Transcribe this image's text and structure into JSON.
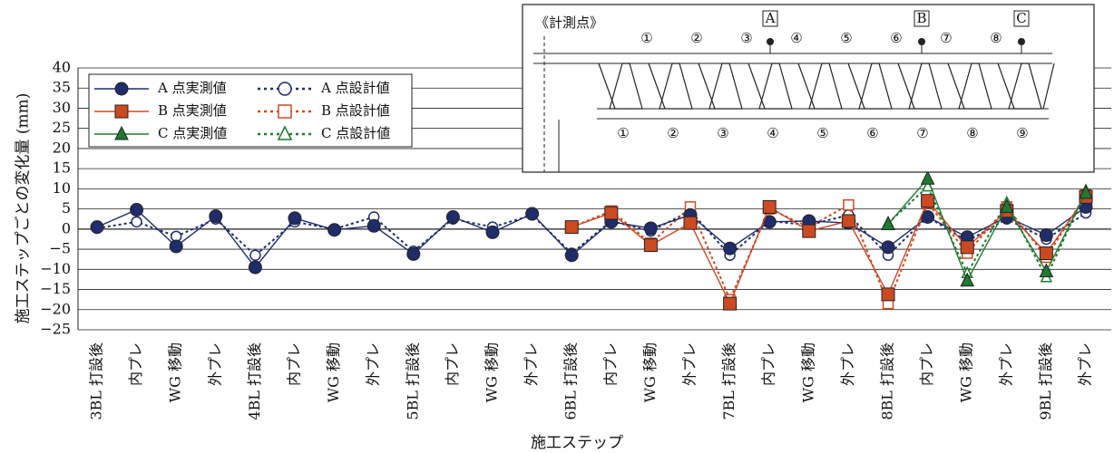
{
  "chart_data": {
    "type": "line",
    "title": "",
    "xlabel": "施工ステップ",
    "ylabel": "施工ステップごとの変化量 (mm)",
    "ylim": [
      -25,
      40
    ],
    "yticks": [
      40,
      35,
      30,
      25,
      20,
      15,
      10,
      5,
      0,
      -5,
      -10,
      -15,
      -20,
      -25
    ],
    "grid": true,
    "legend_position": "top-left",
    "categories": [
      "3BL 打設後",
      "内プレ",
      "WG 移動",
      "外プレ",
      "4BL 打設後",
      "内プレ",
      "WG 移動",
      "外プレ",
      "5BL 打設後",
      "内プレ",
      "WG 移動",
      "外プレ",
      "6BL 打設後",
      "内プレ",
      "WG 移動",
      "外プレ",
      "7BL 打設後",
      "内プレ",
      "WG 移動",
      "外プレ",
      "8BL 打設後",
      "内プレ",
      "WG 移動",
      "外プレ",
      "9BL 打設後",
      "外プレ"
    ],
    "series": [
      {
        "name": "A 点実測値",
        "color": "#1f2d6b",
        "style": "solid",
        "marker": "circle",
        "filled": true,
        "values": [
          0.5,
          4.8,
          -4.3,
          3.2,
          -9.5,
          2.7,
          -0.2,
          0.8,
          -6.2,
          3.0,
          -0.8,
          3.8,
          -6.5,
          1.8,
          0.2,
          3.5,
          -4.8,
          1.8,
          2.0,
          1.5,
          -4.5,
          3.0,
          -2.0,
          3.0,
          -1.5,
          5.5
        ]
      },
      {
        "name": "A 点設計値",
        "color": "#1f2d6b",
        "style": "dotted",
        "marker": "circle",
        "filled": false,
        "values": [
          0.2,
          1.8,
          -1.8,
          2.5,
          -6.5,
          1.8,
          0.0,
          3.0,
          -5.5,
          2.5,
          0.5,
          3.5,
          -6.0,
          2.0,
          -0.5,
          4.5,
          -6.5,
          2.0,
          1.0,
          3.5,
          -6.5,
          3.0,
          -3.0,
          2.5,
          -2.5,
          4.0
        ]
      },
      {
        "name": "B 点実測値",
        "color": "#cc4a22",
        "style": "solid",
        "marker": "square",
        "filled": true,
        "values": [
          null,
          null,
          null,
          null,
          null,
          null,
          null,
          null,
          null,
          null,
          null,
          null,
          0.5,
          4.0,
          -4.0,
          1.5,
          -18.5,
          5.5,
          -0.5,
          2.0,
          -16.2,
          7.0,
          -4.5,
          4.5,
          -6.0,
          8.0
        ]
      },
      {
        "name": "B 点設計値",
        "color": "#cc4a22",
        "style": "dotted",
        "marker": "square",
        "filled": false,
        "values": [
          null,
          null,
          null,
          null,
          null,
          null,
          null,
          null,
          null,
          null,
          null,
          null,
          0.5,
          4.5,
          -3.5,
          5.5,
          -17.5,
          5.0,
          0.5,
          6.0,
          -18.5,
          6.5,
          -6.0,
          5.5,
          -7.0,
          8.5
        ]
      },
      {
        "name": "C 点実測値",
        "color": "#1e7a32",
        "style": "solid",
        "marker": "triangle",
        "filled": true,
        "values": [
          null,
          null,
          null,
          null,
          null,
          null,
          null,
          null,
          null,
          null,
          null,
          null,
          null,
          null,
          null,
          null,
          null,
          null,
          null,
          null,
          1.2,
          12.5,
          -12.8,
          5.5,
          -10.5,
          9.0
        ]
      },
      {
        "name": "C 点設計値",
        "color": "#1e7a32",
        "style": "dotted",
        "marker": "triangle",
        "filled": false,
        "values": [
          null,
          null,
          null,
          null,
          null,
          null,
          null,
          null,
          null,
          null,
          null,
          null,
          null,
          null,
          null,
          null,
          null,
          null,
          null,
          null,
          1.5,
          10.5,
          -11.0,
          6.5,
          -12.0,
          9.5
        ]
      }
    ],
    "inset": {
      "title": "《計測点》",
      "markers": [
        "A",
        "B",
        "C"
      ],
      "top_numbers": [
        "①",
        "②",
        "③",
        "④",
        "⑤",
        "⑥",
        "⑦",
        "⑧"
      ],
      "bottom_numbers": [
        "①",
        "②",
        "③",
        "④",
        "⑤",
        "⑥",
        "⑦",
        "⑧",
        "⑨"
      ]
    }
  }
}
